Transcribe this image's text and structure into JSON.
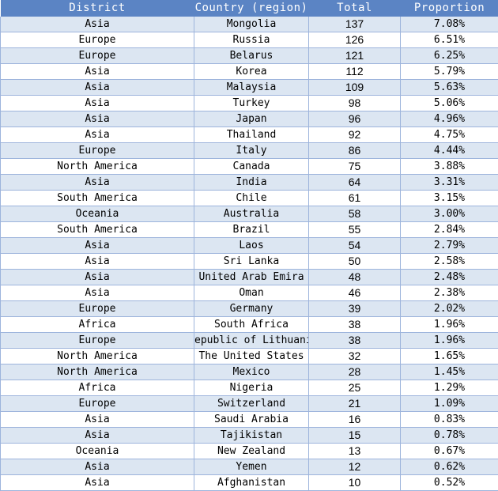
{
  "columns": [
    "District",
    "Country (region)",
    "Total",
    "Proportion"
  ],
  "rows": [
    {
      "district": "Asia",
      "country": "Mongolia",
      "total": "137",
      "proportion": "7.08%"
    },
    {
      "district": "Europe",
      "country": "Russia",
      "total": "126",
      "proportion": "6.51%"
    },
    {
      "district": "Europe",
      "country": "Belarus",
      "total": "121",
      "proportion": "6.25%"
    },
    {
      "district": "Asia",
      "country": "Korea",
      "total": "112",
      "proportion": "5.79%"
    },
    {
      "district": "Asia",
      "country": "Malaysia",
      "total": "109",
      "proportion": "5.63%"
    },
    {
      "district": "Asia",
      "country": "Turkey",
      "total": "98",
      "proportion": "5.06%"
    },
    {
      "district": "Asia",
      "country": "Japan",
      "total": "96",
      "proportion": "4.96%"
    },
    {
      "district": "Asia",
      "country": "Thailand",
      "total": "92",
      "proportion": "4.75%"
    },
    {
      "district": "Europe",
      "country": "Italy",
      "total": "86",
      "proportion": "4.44%"
    },
    {
      "district": "North America",
      "country": "Canada",
      "total": "75",
      "proportion": "3.88%"
    },
    {
      "district": "Asia",
      "country": "India",
      "total": "64",
      "proportion": "3.31%"
    },
    {
      "district": "South America",
      "country": "Chile",
      "total": "61",
      "proportion": "3.15%"
    },
    {
      "district": "Oceania",
      "country": "Australia",
      "total": "58",
      "proportion": "3.00%"
    },
    {
      "district": "South America",
      "country": "Brazil",
      "total": "55",
      "proportion": "2.84%"
    },
    {
      "district": "Asia",
      "country": "Laos",
      "total": "54",
      "proportion": "2.79%"
    },
    {
      "district": "Asia",
      "country": "Sri Lanka",
      "total": "50",
      "proportion": "2.58%"
    },
    {
      "district": "Asia",
      "country": "United Arab Emira",
      "total": "48",
      "proportion": "2.48%"
    },
    {
      "district": "Asia",
      "country": "Oman",
      "total": "46",
      "proportion": "2.38%"
    },
    {
      "district": "Europe",
      "country": "Germany",
      "total": "39",
      "proportion": "2.02%"
    },
    {
      "district": "Africa",
      "country": "South Africa",
      "total": "38",
      "proportion": "1.96%"
    },
    {
      "district": "Europe",
      "country": "epublic of Lithuani",
      "total": "38",
      "proportion": "1.96%"
    },
    {
      "district": "North America",
      "country": "The United States",
      "total": "32",
      "proportion": "1.65%"
    },
    {
      "district": "North America",
      "country": "Mexico",
      "total": "28",
      "proportion": "1.45%"
    },
    {
      "district": "Africa",
      "country": "Nigeria",
      "total": "25",
      "proportion": "1.29%"
    },
    {
      "district": "Europe",
      "country": "Switzerland",
      "total": "21",
      "proportion": "1.09%"
    },
    {
      "district": "Asia",
      "country": "Saudi Arabia",
      "total": "16",
      "proportion": "0.83%"
    },
    {
      "district": "Asia",
      "country": "Tajikistan",
      "total": "15",
      "proportion": "0.78%"
    },
    {
      "district": "Oceania",
      "country": "New Zealand",
      "total": "13",
      "proportion": "0.67%"
    },
    {
      "district": "Asia",
      "country": "Yemen",
      "total": "12",
      "proportion": "0.62%"
    },
    {
      "district": "Asia",
      "country": "Afghanistan",
      "total": "10",
      "proportion": "0.52%"
    }
  ]
}
